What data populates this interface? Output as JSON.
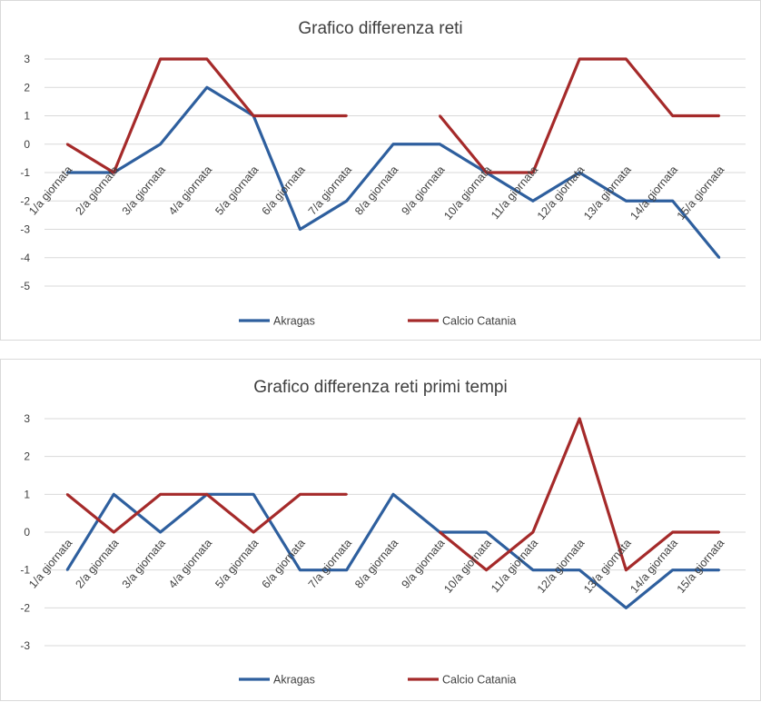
{
  "colors": {
    "akragas": "#2e5f9e",
    "catania": "#a52a2a"
  },
  "chart_data": [
    {
      "type": "line",
      "title": "Grafico differenza reti",
      "categories": [
        "1/a giornata",
        "2/a giornata",
        "3/a giornata",
        "4/a giornata",
        "5/a giornata",
        "6/a giornata",
        "7/a giornata",
        "8/a giornata",
        "9/a giornata",
        "10/a giornata",
        "11/a giornata",
        "12/a giornata",
        "13/a giornata",
        "14/a giornata",
        "15/a giornata"
      ],
      "ylim": [
        -5,
        3
      ],
      "yticks": [
        3,
        2,
        1,
        0,
        -1,
        -2,
        -3,
        -4,
        -5
      ],
      "grid": true,
      "legend": "bottom",
      "series": [
        {
          "name": "Akragas",
          "color": "#2e5f9e",
          "values": [
            -1,
            -1,
            0,
            2,
            1,
            -3,
            -2,
            0,
            0,
            -1,
            -2,
            -1,
            -2,
            -2,
            -4
          ]
        },
        {
          "name": "Calcio Catania",
          "color": "#a52a2a",
          "values": [
            0,
            -1,
            3,
            3,
            1,
            1,
            1,
            null,
            1,
            -1,
            -1,
            3,
            3,
            1,
            1
          ]
        }
      ]
    },
    {
      "type": "line",
      "title": "Grafico differenza reti primi tempi",
      "categories": [
        "1/a giornata",
        "2/a giornata",
        "3/a giornata",
        "4/a giornata",
        "5/a giornata",
        "6/a giornata",
        "7/a giornata",
        "8/a giornata",
        "9/a giornata",
        "10/a giornata",
        "11/a giornata",
        "12/a giornata",
        "13/a giornata",
        "14/a giornata",
        "15/a giornata"
      ],
      "ylim": [
        -3,
        3
      ],
      "yticks": [
        3,
        2,
        1,
        0,
        -1,
        -2,
        -3
      ],
      "grid": true,
      "legend": "bottom",
      "series": [
        {
          "name": "Akragas",
          "color": "#2e5f9e",
          "values": [
            -1,
            1,
            0,
            1,
            1,
            -1,
            -1,
            1,
            0,
            0,
            -1,
            -1,
            -2,
            -1,
            -1
          ]
        },
        {
          "name": "Calcio Catania",
          "color": "#a52a2a",
          "values": [
            1,
            0,
            1,
            1,
            0,
            1,
            1,
            null,
            0,
            -1,
            0,
            3,
            -1,
            0,
            0
          ]
        }
      ]
    }
  ]
}
